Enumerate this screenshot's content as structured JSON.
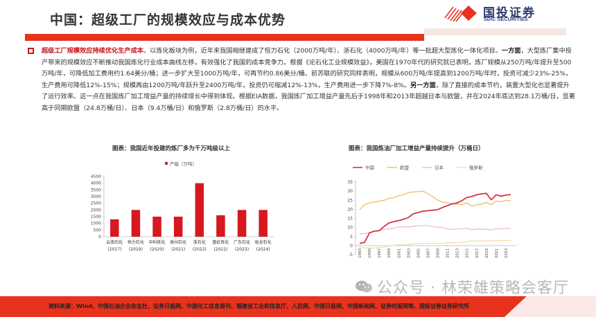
{
  "header": {
    "title": "中国：超级工厂的规模效应与成本优势",
    "logo_cn": "国投证券",
    "logo_en": "SDIC SECURITIES",
    "accent_color": "#e8321e"
  },
  "body": {
    "highlight": "超级工厂规模效应持续优化生产成本",
    "p1": "。以炼化板块为例，近年来我国相继建成了恒力石化（2000万吨/年）、浙石化（4000万吨/年）等一批超大型炼化一体化项目。",
    "bold1": "一方面",
    "p2": "，大型炼厂集中投产带来的规模效应不断推动我国炼化行业成本曲线左移，有效强化了我国的成本竞争力。根据《论石化工业规模效益》，美国在1970年代的研究就已表明，炼厂规模从250万吨/年提升至500万吨/年，可降低加工费用约1.64美分/桶；进一步扩大至1000万吨/年，可再节约0.86美分/桶。前苏联的研究同样表明，规模从600万吨/年提高到1200万吨/年时，投资可减少23%-25%，生产费用可降低12%-15%；规模再由1200万吨/年跃升至2400万吨/年，投资仍可缩减12%-13%，生产费用进一步下降7%-8%。",
    "bold2": "另一方面",
    "p3": "，除了直接的成本节约，装置大型化也显著提升了运行效率。这一点在我国炼厂加工增益产量的持续增长中得到体现。根据EIA数据，我国炼厂加工增益产量先后于1998年和2013年超越日本与欧盟，并在2024年底达到28.1万桶/日，显著高于同期欧盟（24.8万桶/日）、日本（9.4万桶/日）和俄罗斯（2.8万桶/日）的水平。"
  },
  "watermark": "公众号 · 林荣雄策略会客厅",
  "footer": {
    "source": "资料来源：Wind、中国石油企业杂志社、证券日报网、中国化工信息周刊、福建省工业和信息厅、人民网、中国日报网、中国新闻网、证券时报网等、国投证券证券研究所"
  },
  "chart_data": [
    {
      "type": "bar",
      "title": "图表：我国近年投建的炼厂多为千万吨级以上",
      "legend": [
        "产能（万吨）"
      ],
      "categories": [
        "云南石化(2017)",
        "恒力石化(2019)",
        "中科炼化(2020)",
        "泉州石化(2021)",
        "浙石化(2022)",
        "盛虹炼化(2022)",
        "广东石化(2023)",
        "裕龙石化(2024)"
      ],
      "category_names": [
        "云南石化",
        "恒力石化",
        "中科炼化",
        "泉州石化",
        "浙石化",
        "盛虹炼化",
        "广东石化",
        "裕龙石化"
      ],
      "category_years": [
        "(2017)",
        "(2019)",
        "(2020)",
        "(2021)",
        "(2022)",
        "(2022)",
        "(2023)",
        "(2024)"
      ],
      "values": [
        1300,
        2000,
        1500,
        1500,
        4000,
        1600,
        2000,
        2000
      ],
      "yticks": [
        0,
        500,
        1000,
        1500,
        2000,
        2500,
        3000,
        3500,
        4000,
        4500
      ],
      "ylim": [
        0,
        4500
      ],
      "color": "#d7181f",
      "xlabel": "",
      "ylabel": ""
    },
    {
      "type": "line",
      "title": "图表：我国炼油厂加工增益产量持续提升（万桶日）",
      "x": [
        1993,
        1994,
        1995,
        1996,
        1997,
        1998,
        1999,
        2000,
        2001,
        2002,
        2003,
        2004,
        2005,
        2006,
        2007,
        2008,
        2009,
        2010,
        2011,
        2012,
        2013,
        2014,
        2015,
        2016,
        2017,
        2018,
        2019,
        2020,
        2021,
        2022,
        2023,
        2024
      ],
      "xticks": [
        "1993",
        "1995",
        "1997",
        "1999",
        "2001",
        "2003",
        "2005",
        "2007",
        "2009",
        "2011",
        "2013",
        "2015",
        "2017",
        "2019",
        "2021",
        "2023"
      ],
      "yticks": [
        -5,
        0,
        5,
        10,
        15,
        20,
        25,
        30,
        35
      ],
      "ylim": [
        -5,
        35
      ],
      "series": [
        {
          "name": "中国",
          "color": "#d2344a",
          "values": [
            1.2,
            1.8,
            7,
            8,
            8.2,
            10.5,
            12.5,
            13.2,
            13.8,
            14.5,
            15.5,
            17.5,
            18.2,
            19,
            19.2,
            19.5,
            19.8,
            21,
            22,
            23,
            23.5,
            24.8,
            26.5,
            27,
            28,
            28.5,
            28.8,
            25.2,
            28,
            27.2,
            27.8,
            28.1
          ]
        },
        {
          "name": "欧盟",
          "color": "#f1c56a",
          "values": [
            19.8,
            22.5,
            23.5,
            24,
            24.5,
            25,
            26,
            26.5,
            27.5,
            28,
            29.2,
            29.5,
            29.8,
            30,
            28.5,
            27,
            25,
            24,
            23.5,
            23,
            22.8,
            22.5,
            23.5,
            21.8,
            22.5,
            22.8,
            23.8,
            22.5,
            24.5,
            24.2,
            24.9,
            24.8
          ]
        },
        {
          "name": "日本",
          "color": "#f0c8c4",
          "values": [
            6.5,
            6.6,
            7,
            8,
            8.3,
            8.8,
            9.2,
            9.6,
            10.3,
            10.4,
            10.2,
            10.6,
            10.9,
            11,
            11.1,
            10.5,
            10.2,
            10,
            9.2,
            9,
            9.2,
            9.3,
            9.5,
            8.7,
            9.2,
            9,
            9.1,
            8.6,
            9.4,
            9.3,
            9.4,
            9.4
          ]
        },
        {
          "name": "俄罗斯",
          "color": "#f6e2b4",
          "values": [
            -1,
            -1.2,
            -1.5,
            -1.3,
            -1.1,
            -0.8,
            0,
            0.2,
            0.4,
            0.5,
            0.8,
            1,
            1.1,
            1.2,
            1.3,
            1.4,
            1.2,
            1.3,
            1.5,
            1.6,
            1.7,
            1.8,
            2.3,
            2.5,
            2.5,
            2.6,
            2.7,
            2.6,
            2.7,
            2.7,
            2.8,
            2.8
          ]
        }
      ],
      "xlabel": "",
      "ylabel": ""
    }
  ]
}
